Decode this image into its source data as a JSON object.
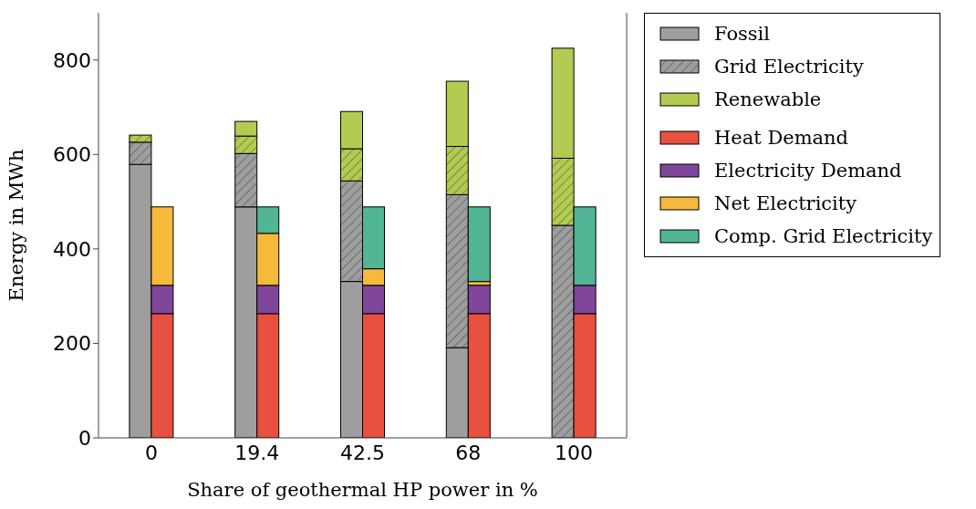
{
  "chart_data": {
    "type": "bar",
    "xlabel": "Share of geothermal HP power in %",
    "ylabel": "Energy in MWh",
    "categories": [
      "0",
      "19.4",
      "42.5",
      "68",
      "100"
    ],
    "ylim": [
      0,
      900
    ],
    "yticks": [
      0,
      200,
      400,
      600,
      800
    ],
    "legend": "top right",
    "series": [
      {
        "name": "Fossil",
        "color": "#9e9e9e",
        "base": [
          0,
          0,
          0,
          0,
          null
        ],
        "values": [
          579,
          489,
          331,
          191,
          null
        ]
      },
      {
        "name": "Grid Electricity",
        "color": "#9e9e9e",
        "base": [
          579,
          489,
          331,
          191,
          0
        ],
        "values": [
          47,
          113,
          213,
          324,
          450
        ]
      },
      {
        "color": "#b2cc52",
        "base": [
          626,
          602,
          544,
          515,
          450
        ],
        "values": [
          15,
          37,
          68,
          102,
          142
        ]
      },
      {
        "name": "Renewable",
        "color": "#b2cc52",
        "base": [
          null,
          639,
          612,
          617,
          592
        ],
        "values": [
          null,
          31,
          79,
          138,
          233
        ]
      },
      {
        "name": "Heat Demand",
        "color": "#e8513f",
        "base": [
          0,
          0,
          0,
          0,
          0
        ],
        "values": [
          263,
          263,
          263,
          263,
          263
        ]
      },
      {
        "name": "Electricity Demand",
        "color": "#7f4699",
        "base": [
          263,
          263,
          263,
          263,
          263
        ],
        "values": [
          60,
          60,
          60,
          60,
          60
        ]
      },
      {
        "name": "Net Electricity",
        "color": "#f6b93c",
        "base": [
          323,
          323,
          323,
          323,
          null
        ],
        "values": [
          166,
          110,
          35,
          8,
          null
        ]
      },
      {
        "name": "Comp. Grid Electricity",
        "color": "#52b595",
        "base": [
          null,
          433,
          358,
          331,
          323
        ],
        "values": [
          null,
          56,
          131,
          158,
          166
        ]
      }
    ]
  }
}
